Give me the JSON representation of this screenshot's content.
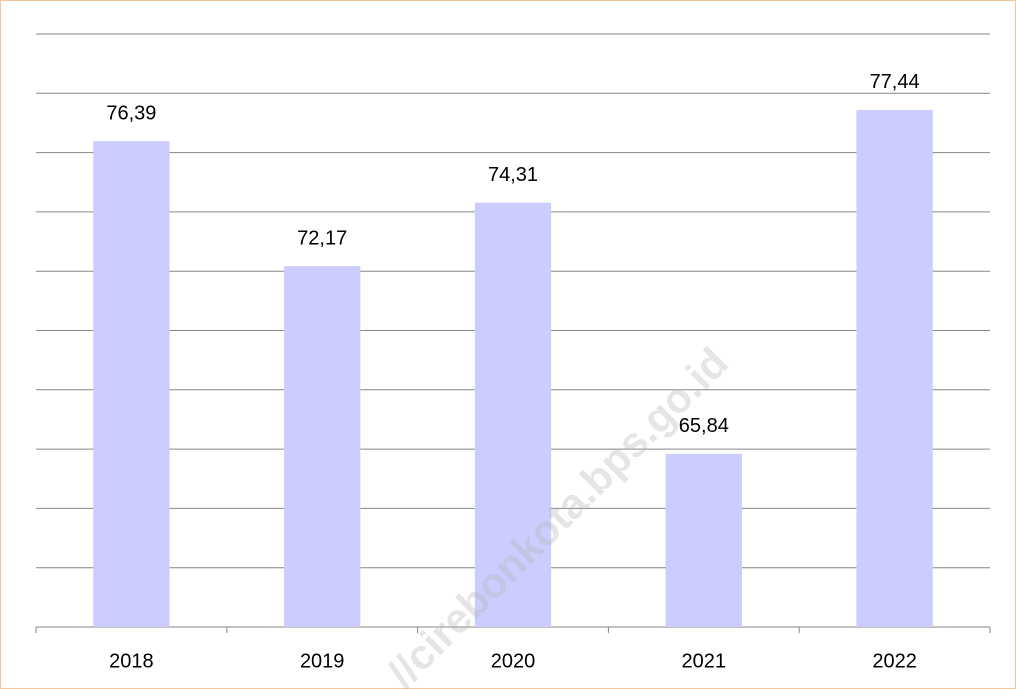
{
  "chart_data": {
    "type": "bar",
    "categories": [
      "2018",
      "2019",
      "2020",
      "2021",
      "2022"
    ],
    "values": [
      76.39,
      72.17,
      74.31,
      65.84,
      77.44
    ],
    "value_labels": [
      "76,39",
      "72,17",
      "74,31",
      "65,84",
      "77,44"
    ],
    "color": "#ccccff",
    "ylim": [
      60,
      80
    ],
    "yticks": [
      60,
      62,
      64,
      66,
      68,
      70,
      72,
      74,
      76,
      78,
      80
    ],
    "grid": true,
    "annotations": [
      "//cirebonkota.bps.go.id"
    ]
  }
}
